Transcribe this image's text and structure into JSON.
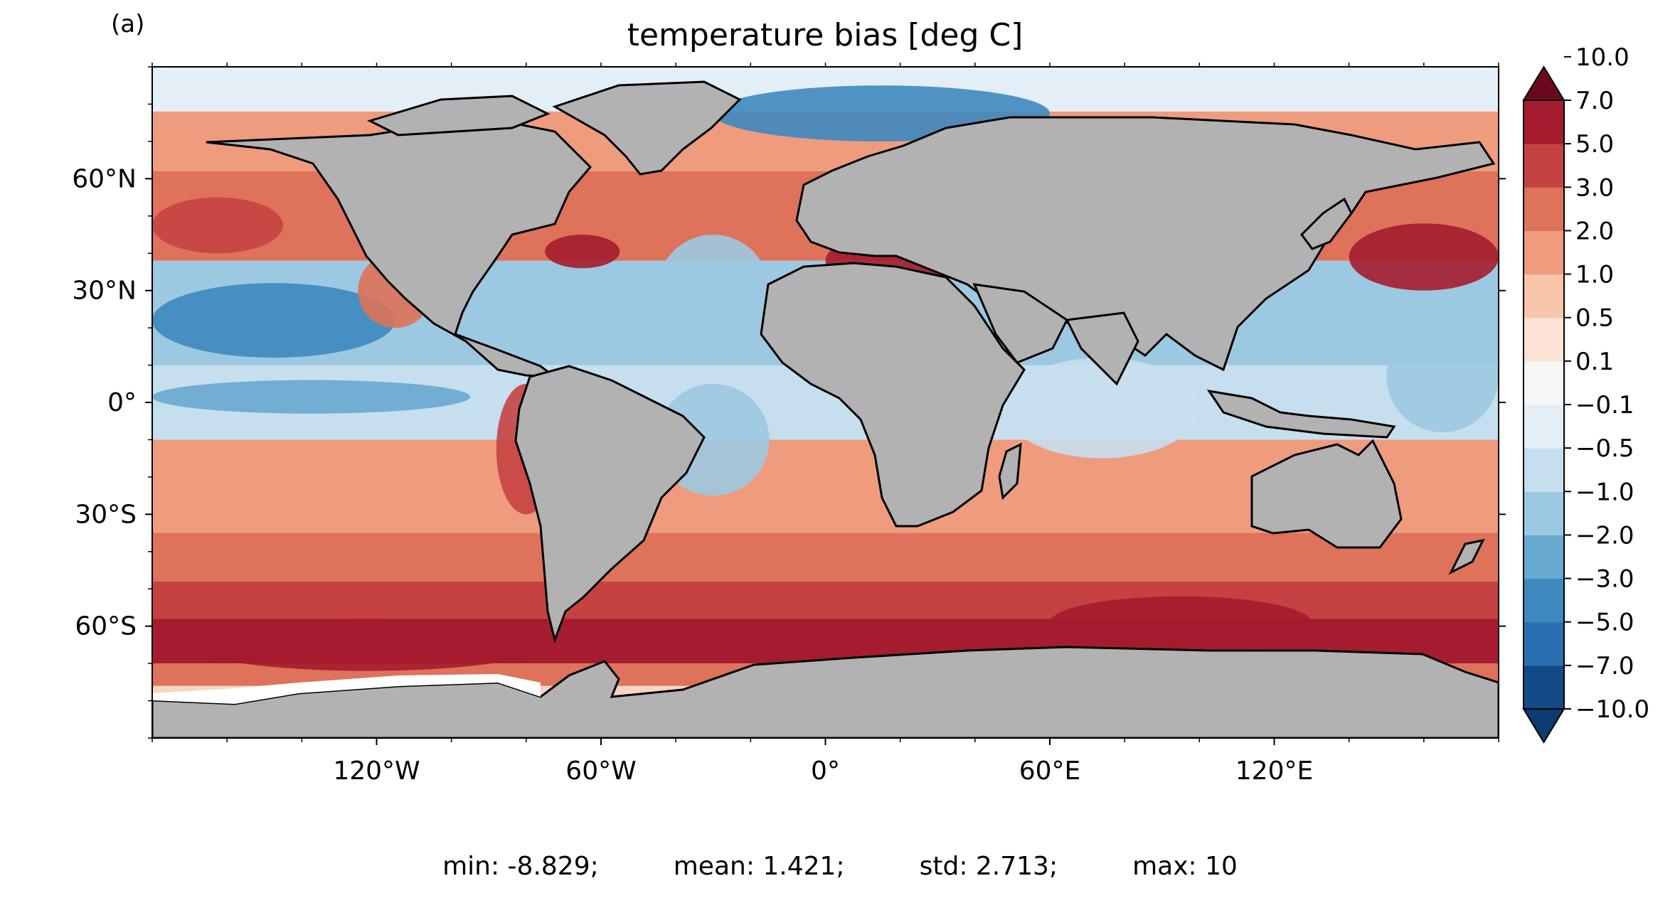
{
  "panel_label": "(a)",
  "stats": {
    "min": "min: -8.829;",
    "mean": "mean: 1.421;",
    "std": "std: 2.713;",
    "max": "max: 10"
  },
  "chart_data": {
    "type": "heatmap",
    "title": "temperature bias [deg C]",
    "xlabel": "",
    "ylabel": "",
    "x_ticks": [
      "120°W",
      "60°W",
      "0°",
      "60°E",
      "120°E"
    ],
    "x_tick_values": [
      -120,
      -60,
      0,
      60,
      120
    ],
    "y_ticks": [
      "60°N",
      "30°N",
      "0°",
      "30°S",
      "60°S"
    ],
    "y_tick_values": [
      60,
      30,
      0,
      -30,
      -60
    ],
    "xlim": [
      -180,
      180
    ],
    "ylim": [
      -90,
      90
    ],
    "projection": "plate carree, land masked grey with black coastlines",
    "colormap": "RdBu_r",
    "colorbar": {
      "levels": [
        -10.0,
        -7.0,
        -5.0,
        -3.0,
        -2.0,
        -1.0,
        -0.5,
        -0.1,
        0.1,
        0.5,
        1.0,
        2.0,
        3.0,
        5.0,
        7.0,
        10.0
      ],
      "labels": [
        "−10.0",
        "−7.0",
        "−5.0",
        "−3.0",
        "−2.0",
        "−1.0",
        "−0.5",
        "−0.1",
        "0.1",
        "0.5",
        "1.0",
        "2.0",
        "3.0",
        "5.0",
        "7.0",
        "10.0"
      ],
      "colors": [
        "#134b87",
        "#2b6fb0",
        "#3e88c0",
        "#68a9d0",
        "#9cc9e1",
        "#c6dfee",
        "#e3eef6",
        "#f6f6f6",
        "#fbe3d6",
        "#f8c4aa",
        "#ef9b7d",
        "#de725a",
        "#c64242",
        "#a51c2e"
      ],
      "extend": "both",
      "under_color": "#0b3c6f",
      "over_color": "#6b0a1f"
    },
    "bands": [
      {
        "lat": [
          78,
          90
        ],
        "value": -0.3
      },
      {
        "lat": [
          62,
          78
        ],
        "value": 1.5
      },
      {
        "lat": [
          38,
          62
        ],
        "value": 2.5
      },
      {
        "lat": [
          10,
          38
        ],
        "value": -1.5
      },
      {
        "lat": [
          -10,
          10
        ],
        "value": -1.0
      },
      {
        "lat": [
          -35,
          -10
        ],
        "value": 1.0
      },
      {
        "lat": [
          -48,
          -35
        ],
        "value": 2.0
      },
      {
        "lat": [
          -58,
          -48
        ],
        "value": 3.5
      },
      {
        "lat": [
          -70,
          -58
        ],
        "value": 5.5
      },
      {
        "lat": [
          -76,
          -70
        ],
        "value": 2.5
      }
    ],
    "features": [
      {
        "name": "north-pacific-cold-tongue",
        "lon": [
          -180,
          -115
        ],
        "lat": [
          12,
          32
        ],
        "value": -3.5
      },
      {
        "name": "equatorial-pacific-cold",
        "lon": [
          -180,
          -95
        ],
        "lat": [
          -3,
          6
        ],
        "value": -3.0
      },
      {
        "name": "peru-coast-warm",
        "lon": [
          -88,
          -72
        ],
        "lat": [
          -30,
          5
        ],
        "value": 4.0
      },
      {
        "name": "california-coast-warm",
        "lon": [
          -125,
          -105
        ],
        "lat": [
          20,
          40
        ],
        "value": 2.5
      },
      {
        "name": "nw-pacific-warm",
        "lon": [
          140,
          180
        ],
        "lat": [
          30,
          48
        ],
        "value": 5.0
      },
      {
        "name": "ne-pacific-warm",
        "lon": [
          -180,
          -145
        ],
        "lat": [
          40,
          55
        ],
        "value": 4.0
      },
      {
        "name": "north-atlantic-cold",
        "lon": [
          -45,
          -15
        ],
        "lat": [
          15,
          45
        ],
        "value": -1.5
      },
      {
        "name": "south-atlantic-cold",
        "lon": [
          -45,
          -15
        ],
        "lat": [
          -25,
          5
        ],
        "value": -1.5
      },
      {
        "name": "gulf-stream-warm",
        "lon": [
          -75,
          -55
        ],
        "lat": [
          36,
          45
        ],
        "value": 5.0
      },
      {
        "name": "mediterranean-warm",
        "lon": [
          0,
          36
        ],
        "lat": [
          31,
          45
        ],
        "value": 5.0
      },
      {
        "name": "nordic-seas-cold",
        "lon": [
          -30,
          60
        ],
        "lat": [
          70,
          85
        ],
        "value": -5.0
      },
      {
        "name": "indian-ocean-cold",
        "lon": [
          48,
          100
        ],
        "lat": [
          -15,
          12
        ],
        "value": -0.7
      },
      {
        "name": "tropical-pacific-west",
        "lon": [
          150,
          180
        ],
        "lat": [
          -8,
          22
        ],
        "value": -1.5
      },
      {
        "name": "southern-pacific-max",
        "lon": [
          -170,
          -75
        ],
        "lat": [
          -72,
          -58
        ],
        "value": 8.5
      },
      {
        "name": "southern-indian-max",
        "lon": [
          60,
          130
        ],
        "lat": [
          -66,
          -52
        ],
        "value": 8.0
      }
    ]
  }
}
